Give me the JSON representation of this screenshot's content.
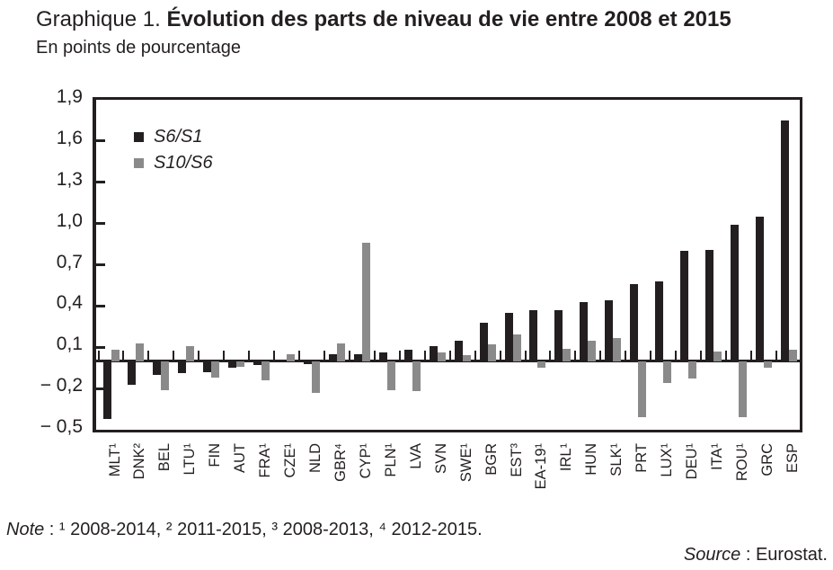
{
  "title": {
    "prefix": "Graphique 1.",
    "main": "Évolution des parts de niveau de vie entre 2008 et 2015"
  },
  "subtitle": "En points de pourcentage",
  "note": {
    "label": "Note",
    "text": " : ¹ 2008-2014, ² 2011-2015, ³ 2008-2013, ⁴ 2012-2015."
  },
  "source": {
    "label": "Source",
    "text": " : Eurostat."
  },
  "colors": {
    "dark": "#231f20",
    "gray": "#8a8a8a"
  },
  "chart_data": {
    "type": "bar",
    "title": "Graphique 1. Évolution des parts de niveau de vie entre 2008 et 2015",
    "subtitle": "En points de pourcentage",
    "xlabel": "",
    "ylabel": "",
    "ylim": [
      -0.5,
      1.9
    ],
    "grid": false,
    "legend_position": "top-left-inside",
    "ytick_values": [
      1.9,
      1.6,
      1.3,
      1.0,
      0.7,
      0.4,
      0.1,
      -0.2,
      -0.5
    ],
    "ytick_labels": [
      "1,9",
      "1,6",
      "1,3",
      "1,0",
      "0,7",
      "0,4",
      "0,1",
      "− 0,2",
      "− 0,5"
    ],
    "categories": [
      "MLT¹",
      "DNK²",
      "BEL",
      "LTU¹",
      "FIN",
      "AUT",
      "FRA¹",
      "CZE¹",
      "NLD",
      "GBR⁴",
      "CYP¹",
      "PLN¹",
      "LVA",
      "SVN",
      "SWE¹",
      "BGR",
      "EST³",
      "EA-19¹",
      "IRL¹",
      "HUN",
      "SLK¹",
      "PRT",
      "LUX¹",
      "DEU¹",
      "ITA¹",
      "ROU¹",
      "GRC",
      "ESP"
    ],
    "series": [
      {
        "name": "S6/S1",
        "color_key": "dark",
        "values": [
          -0.42,
          -0.17,
          -0.1,
          -0.09,
          -0.08,
          -0.05,
          -0.03,
          -0.01,
          -0.02,
          0.05,
          0.05,
          0.06,
          0.08,
          0.11,
          0.15,
          0.28,
          0.35,
          0.37,
          0.37,
          0.43,
          0.44,
          0.56,
          0.58,
          0.8,
          0.81,
          0.99,
          1.05,
          1.75
        ]
      },
      {
        "name": "S10/S6",
        "color_key": "gray",
        "values": [
          0.08,
          0.13,
          -0.21,
          0.11,
          -0.12,
          -0.04,
          -0.14,
          0.05,
          -0.23,
          0.13,
          0.86,
          -0.21,
          -0.22,
          0.06,
          0.04,
          0.12,
          0.19,
          -0.05,
          0.09,
          0.15,
          0.17,
          -0.41,
          -0.16,
          -0.13,
          0.07,
          -0.41,
          -0.05,
          0.08
        ]
      }
    ]
  }
}
